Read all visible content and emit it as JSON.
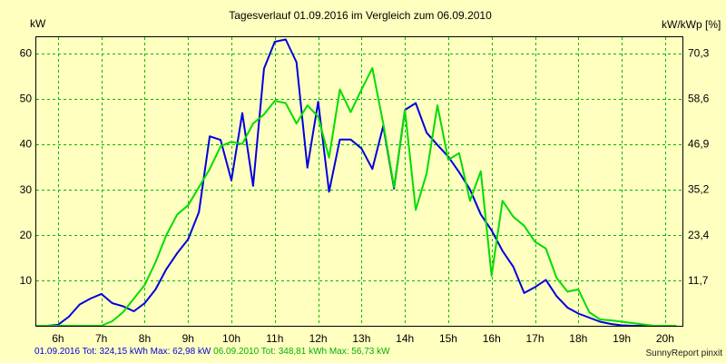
{
  "chart_data": {
    "type": "line",
    "title": "Tagesverlauf 01.09.2016 im Vergleich zum 06.09.2010",
    "ylabel_left": "kW",
    "ylabel_right": "kW/kWp [%]",
    "xlim": [
      5.5,
      20.4
    ],
    "ylim": [
      0,
      63.5
    ],
    "y2lim": [
      0,
      74.4
    ],
    "grid": true,
    "x_ticks": [
      {
        "x": 6,
        "label": "6h"
      },
      {
        "x": 7,
        "label": "7h"
      },
      {
        "x": 8,
        "label": "8h"
      },
      {
        "x": 9,
        "label": "9h"
      },
      {
        "x": 10,
        "label": "10h"
      },
      {
        "x": 11,
        "label": "11h"
      },
      {
        "x": 12,
        "label": "12h"
      },
      {
        "x": 13,
        "label": "13h"
      },
      {
        "x": 14,
        "label": "14h"
      },
      {
        "x": 15,
        "label": "15h"
      },
      {
        "x": 16,
        "label": "16h"
      },
      {
        "x": 17,
        "label": "17h"
      },
      {
        "x": 18,
        "label": "18h"
      },
      {
        "x": 19,
        "label": "19h"
      },
      {
        "x": 20,
        "label": "20h"
      }
    ],
    "y_ticks": [
      {
        "v": 10,
        "label": "10"
      },
      {
        "v": 20,
        "label": "20"
      },
      {
        "v": 30,
        "label": "30"
      },
      {
        "v": 40,
        "label": "40"
      },
      {
        "v": 50,
        "label": "50"
      },
      {
        "v": 60,
        "label": "60"
      }
    ],
    "y2_ticks": [
      {
        "v": 11.7,
        "label": "11,7"
      },
      {
        "v": 23.4,
        "label": "23,4"
      },
      {
        "v": 35.2,
        "label": "35,2"
      },
      {
        "v": 46.9,
        "label": "46,9"
      },
      {
        "v": 58.6,
        "label": "58,6"
      },
      {
        "v": 70.3,
        "label": "70,3"
      }
    ],
    "series": [
      {
        "color": "#0000dd",
        "x": [
          5.5,
          5.75,
          6.0,
          6.25,
          6.5,
          6.75,
          7.0,
          7.25,
          7.5,
          7.75,
          8.0,
          8.25,
          8.5,
          8.75,
          9.0,
          9.25,
          9.5,
          9.75,
          10.0,
          10.25,
          10.5,
          10.75,
          11.0,
          11.25,
          11.5,
          11.75,
          12.0,
          12.25,
          12.5,
          12.75,
          13.0,
          13.25,
          13.5,
          13.75,
          14.0,
          14.25,
          14.5,
          14.75,
          15.0,
          15.25,
          15.5,
          15.75,
          16.0,
          16.25,
          16.5,
          16.75,
          17.0,
          17.25,
          17.5,
          17.75,
          18.0,
          18.25,
          18.5,
          18.75,
          19.0,
          19.25,
          19.5,
          19.75,
          20.0,
          20.25
        ],
        "values": [
          0,
          0,
          0.2,
          2,
          4.7,
          6,
          7,
          5,
          4.3,
          3.2,
          5,
          8,
          12.5,
          16,
          19,
          25,
          41.7,
          40.9,
          32,
          46.8,
          30.8,
          56.6,
          62.5,
          63,
          58,
          34.8,
          49.3,
          29.5,
          41,
          41,
          39,
          34.5,
          44,
          30.2,
          47.5,
          49,
          42.5,
          39.8,
          37.2,
          33.8,
          30,
          24.5,
          21,
          16.5,
          13,
          7.2,
          8.5,
          10.1,
          6.5,
          4,
          2.7,
          1.8,
          0.9,
          0.4,
          0.1,
          0,
          0,
          0,
          0,
          0
        ]
      },
      {
        "color": "#00dd00",
        "x": [
          5.5,
          5.75,
          6.0,
          6.25,
          6.5,
          6.75,
          7.0,
          7.25,
          7.5,
          7.75,
          8.0,
          8.25,
          8.5,
          8.75,
          9.0,
          9.25,
          9.5,
          9.75,
          10.0,
          10.25,
          10.5,
          10.75,
          11.0,
          11.25,
          11.5,
          11.75,
          12.0,
          12.25,
          12.5,
          12.75,
          13.0,
          13.25,
          13.5,
          13.75,
          14.0,
          14.25,
          14.5,
          14.75,
          15.0,
          15.25,
          15.5,
          15.75,
          16.0,
          16.25,
          16.5,
          16.75,
          17.0,
          17.25,
          17.5,
          17.75,
          18.0,
          18.25,
          18.5,
          18.75,
          19.0,
          19.25,
          19.5,
          19.75,
          20.0,
          20.25
        ],
        "values": [
          0,
          0,
          0,
          0,
          0,
          0,
          0,
          1,
          3,
          6,
          9,
          14,
          20,
          24.5,
          26.5,
          30.5,
          34.5,
          39.5,
          40.5,
          40,
          44.5,
          46.5,
          49.5,
          49,
          44.5,
          48.5,
          46,
          37,
          52,
          47,
          52,
          56.7,
          44.5,
          30.5,
          47.5,
          25.5,
          33.5,
          48.5,
          36.5,
          38,
          27.5,
          34,
          11,
          27.5,
          24,
          22,
          18.5,
          17,
          10.5,
          7.5,
          8,
          3,
          1.4,
          1.2,
          0.9,
          0.6,
          0.3,
          0,
          0,
          0
        ]
      }
    ]
  },
  "footer": {
    "left_blue": "01.09.2016 Tot: 324,15 kWh Max: 62,98 kW",
    "left_green": "06.09.2010 Tot: 348,81 kWh Max: 56,73 kW",
    "right": "SunnyReport pinxit"
  }
}
